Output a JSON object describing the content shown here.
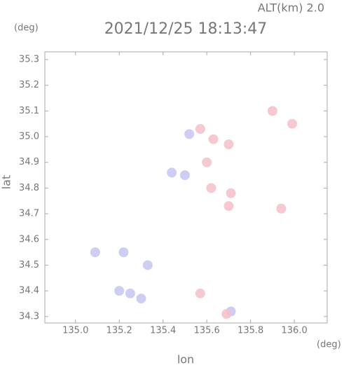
{
  "chart_data": {
    "type": "scatter",
    "header": "ALT(km) 2.0",
    "title": "2021/12/25 18:13:47",
    "y_unit": "(deg)",
    "x_unit": "(deg)",
    "x_label": "lon",
    "y_label": "lat",
    "xlim": [
      134.86,
      136.15
    ],
    "ylim": [
      34.275,
      35.33
    ],
    "xticks": [
      {
        "value": 135,
        "label": "135.0"
      },
      135.2,
      135.4,
      135.6,
      135.8,
      {
        "value": 136,
        "label": "136.0"
      }
    ],
    "yticks": [
      34.3,
      34.4,
      34.5,
      34.6,
      34.7,
      34.8,
      34.9,
      {
        "value": 35,
        "label": "35.0"
      },
      35.1,
      35.2,
      35.3
    ],
    "series": [
      {
        "color": "#c6c6f2",
        "x": [
          135.25,
          135.2,
          135.3,
          135.22,
          135.09,
          135.52,
          135.44,
          135.5,
          135.71,
          135.33
        ],
        "values": [
          34.39,
          34.4,
          34.37,
          34.55,
          34.55,
          35.01,
          34.86,
          34.85,
          34.32,
          34.5
        ]
      },
      {
        "color": "#f4c0c8",
        "x": [
          135.99,
          135.63,
          135.7,
          135.57,
          135.71,
          135.7,
          135.57,
          135.69,
          135.62,
          135.9,
          135.94,
          135.6
        ],
        "values": [
          35.05,
          34.99,
          34.97,
          35.03,
          34.78,
          34.73,
          34.39,
          34.31,
          34.8,
          35.1,
          34.72,
          34.9
        ]
      }
    ]
  }
}
